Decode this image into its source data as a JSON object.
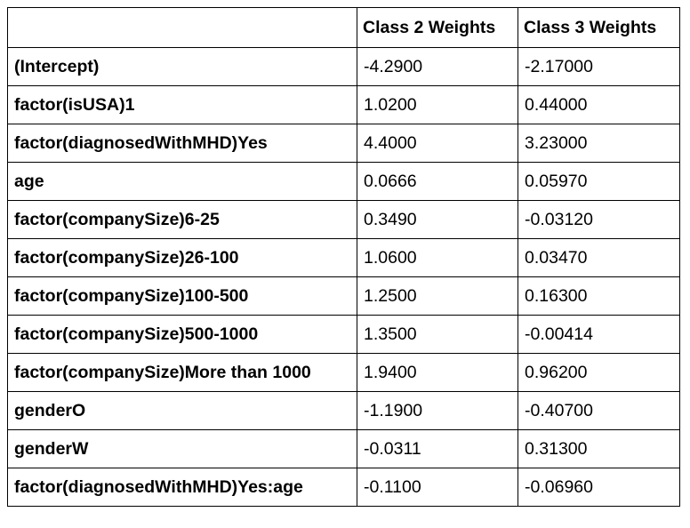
{
  "table": {
    "headers": [
      "",
      "Class 2 Weights",
      "Class 3 Weights"
    ],
    "rows": [
      {
        "term": "(Intercept)",
        "class2": "-4.2900",
        "class3": "-2.17000"
      },
      {
        "term": "factor(isUSA)1",
        "class2": "1.0200",
        "class3": "0.44000"
      },
      {
        "term": "factor(diagnosedWithMHD)Yes",
        "class2": "4.4000",
        "class3": "3.23000"
      },
      {
        "term": "age",
        "class2": "0.0666",
        "class3": "0.05970"
      },
      {
        "term": "factor(companySize)6-25",
        "class2": "0.3490",
        "class3": "-0.03120"
      },
      {
        "term": "factor(companySize)26-100",
        "class2": "1.0600",
        "class3": "0.03470"
      },
      {
        "term": "factor(companySize)100-500",
        "class2": "1.2500",
        "class3": "0.16300"
      },
      {
        "term": "factor(companySize)500-1000",
        "class2": "1.3500",
        "class3": "-0.00414"
      },
      {
        "term": "factor(companySize)More than 1000",
        "class2": "1.9400",
        "class3": "0.96200"
      },
      {
        "term": "genderO",
        "class2": "-1.1900",
        "class3": "-0.40700"
      },
      {
        "term": "genderW",
        "class2": "-0.0311",
        "class3": "0.31300"
      },
      {
        "term": "factor(diagnosedWithMHD)Yes:age",
        "class2": "-0.1100",
        "class3": "-0.06960"
      }
    ]
  }
}
